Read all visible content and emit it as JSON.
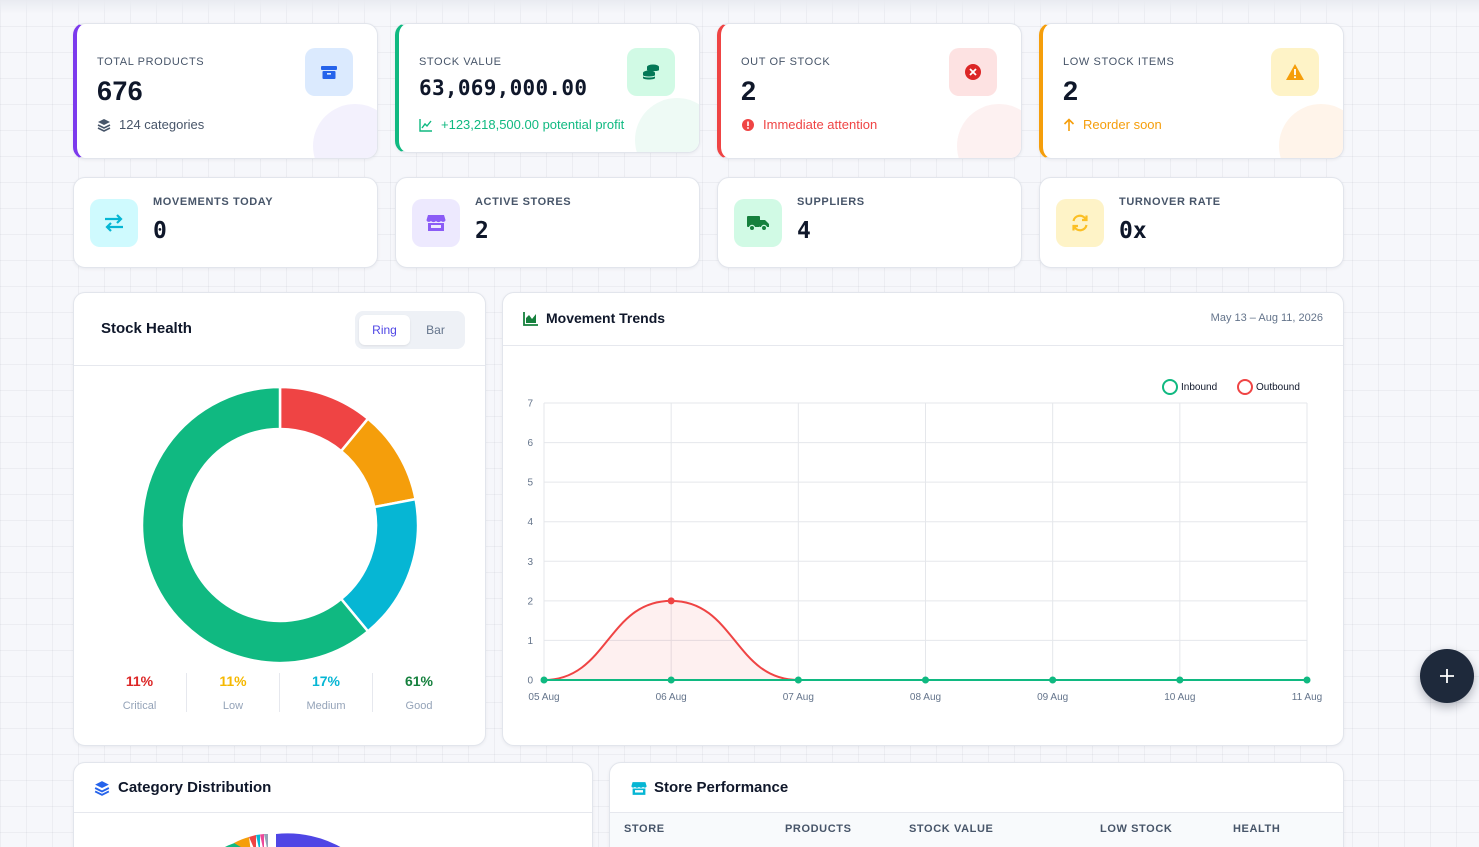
{
  "stats": [
    {
      "label": "TOTAL PRODUCTS",
      "value": "676",
      "sub": "124 categories",
      "sub_color": "#475569",
      "icon": "box-icon",
      "accent": "#7c3aed"
    },
    {
      "label": "STOCK VALUE",
      "value": "63,069,000.00",
      "sub": "+123,218,500.00 potential profit",
      "sub_color": "#10b981",
      "icon": "coins-icon",
      "accent": "#10b981"
    },
    {
      "label": "OUT OF STOCK",
      "value": "2",
      "sub": "Immediate attention",
      "sub_color": "#ef4444",
      "icon": "x-circle-icon",
      "accent": "#ef4444"
    },
    {
      "label": "LOW STOCK ITEMS",
      "value": "2",
      "sub": "Reorder soon",
      "sub_color": "#f59e0b",
      "icon": "warning-icon",
      "accent": "#f59e0b"
    }
  ],
  "mini_stats": [
    {
      "label": "MOVEMENTS TODAY",
      "value": "0",
      "icon": "swap-arrows-icon"
    },
    {
      "label": "ACTIVE STORES",
      "value": "2",
      "icon": "store-icon"
    },
    {
      "label": "SUPPLIERS",
      "value": "4",
      "icon": "truck-icon"
    },
    {
      "label": "TURNOVER RATE",
      "value": "0x",
      "icon": "refresh-icon"
    }
  ],
  "stock_health": {
    "title": "Stock Health",
    "toggle": [
      "Ring",
      "Bar"
    ],
    "active_toggle": "Ring",
    "segments": [
      {
        "name": "Critical",
        "pct": "11%",
        "value": 11,
        "color": "#ef4444",
        "text_color": "#dc2626"
      },
      {
        "name": "Low",
        "pct": "11%",
        "value": 11,
        "color": "#f59e0b",
        "text_color": "#f5b800"
      },
      {
        "name": "Medium",
        "pct": "17%",
        "value": 17,
        "color": "#06b6d4",
        "text_color": "#06b6d4"
      },
      {
        "name": "Good",
        "pct": "61%",
        "value": 61,
        "color": "#10b981",
        "text_color": "#15803d"
      }
    ]
  },
  "movement_trends": {
    "title": "Movement Trends",
    "range": "May 13 – Aug 11, 2026",
    "chart_data": {
      "type": "line",
      "x": [
        "05 Aug",
        "06 Aug",
        "07 Aug",
        "08 Aug",
        "09 Aug",
        "10 Aug",
        "11 Aug"
      ],
      "series": [
        {
          "name": "Inbound",
          "values": [
            0,
            0,
            0,
            0,
            0,
            0,
            0
          ],
          "color": "#10b981"
        },
        {
          "name": "Outbound",
          "values": [
            0,
            2,
            0,
            0,
            0,
            0,
            0
          ],
          "color": "#ef4444"
        }
      ],
      "ylim": [
        0,
        7
      ],
      "yticks": [
        "0",
        "1",
        "2",
        "3",
        "4",
        "5",
        "6",
        "7"
      ],
      "legend": "top-right",
      "grid": true
    }
  },
  "category_distribution": {
    "title": "Category Distribution"
  },
  "store_performance": {
    "title": "Store Performance",
    "columns": [
      "STORE",
      "PRODUCTS",
      "STOCK VALUE",
      "LOW STOCK",
      "HEALTH"
    ]
  },
  "fab": {
    "icon": "plus-icon"
  }
}
